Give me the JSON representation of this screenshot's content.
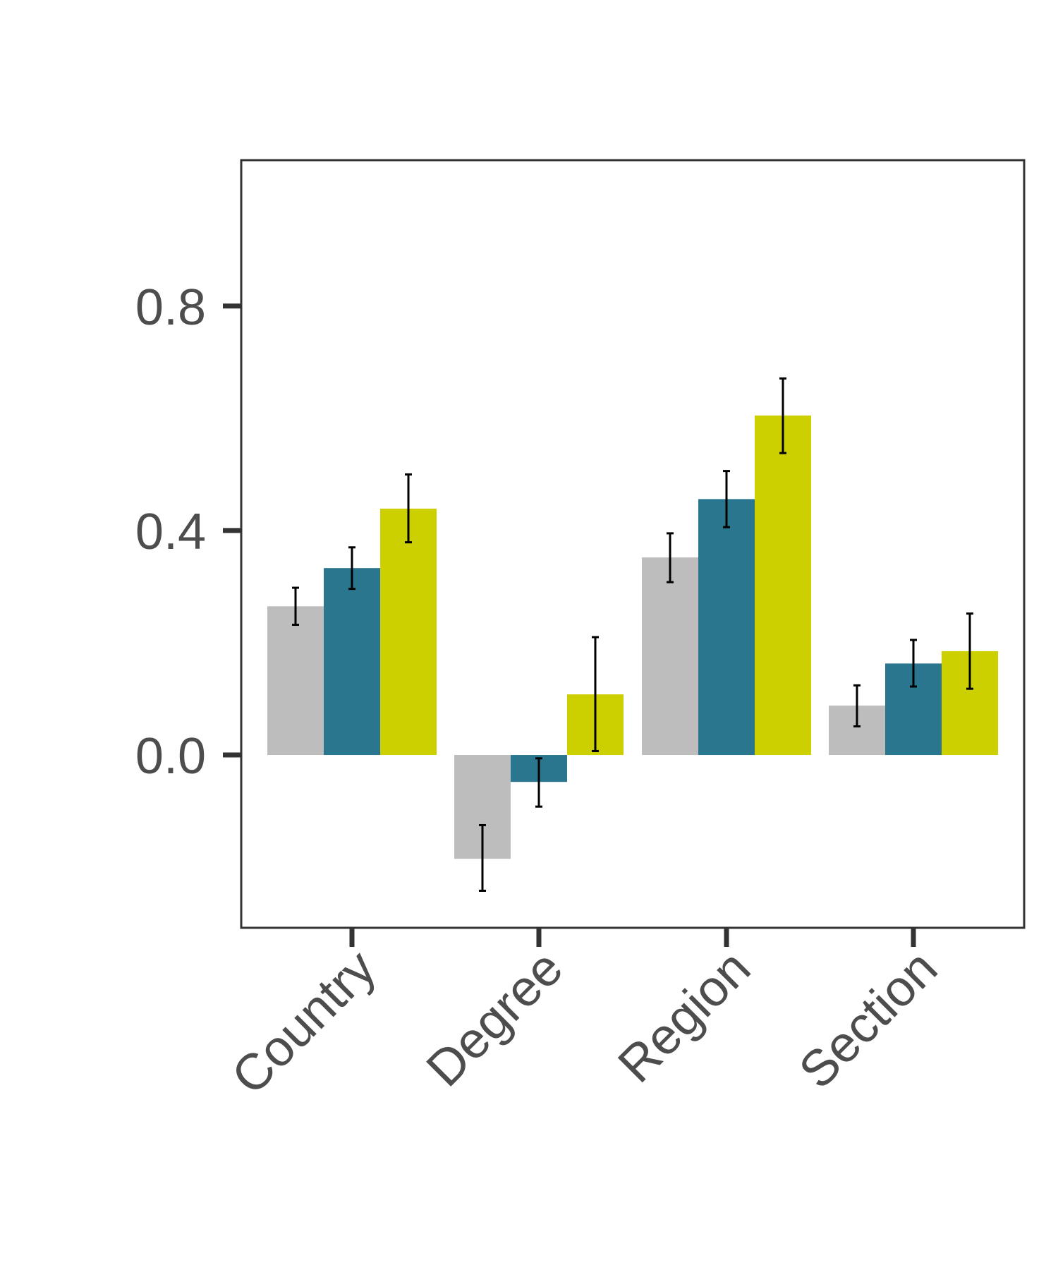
{
  "chart_data": {
    "type": "bar",
    "categories": [
      "Country",
      "Degree",
      "Region",
      "Section"
    ],
    "series": [
      {
        "color": "#bdbdbd",
        "values": [
          0.265,
          -0.185,
          0.352,
          0.088
        ],
        "err_low": [
          0.232,
          -0.242,
          0.308,
          0.051
        ],
        "err_high": [
          0.298,
          -0.125,
          0.395,
          0.124
        ]
      },
      {
        "color": "#2b768f",
        "values": [
          0.333,
          -0.048,
          0.456,
          0.163
        ],
        "err_low": [
          0.296,
          -0.092,
          0.406,
          0.122
        ],
        "err_high": [
          0.37,
          -0.006,
          0.506,
          0.205
        ]
      },
      {
        "color": "#cccf00",
        "values": [
          0.439,
          0.108,
          0.605,
          0.185
        ],
        "err_low": [
          0.379,
          0.007,
          0.538,
          0.118
        ],
        "err_high": [
          0.5,
          0.21,
          0.671,
          0.252
        ]
      }
    ],
    "ylim": [
      -0.308,
      1.06
    ],
    "yticks": [
      {
        "value": 0.0,
        "label": "0.0"
      },
      {
        "value": 0.4,
        "label": "0.4"
      },
      {
        "value": 0.8,
        "label": "0.8"
      }
    ],
    "title": "",
    "xlabel": "",
    "ylabel": "",
    "grid": false,
    "legend": "none",
    "colors": {
      "axis": "#333333",
      "tick_text": "#4d4d4d",
      "error_bar": "#000000"
    }
  }
}
